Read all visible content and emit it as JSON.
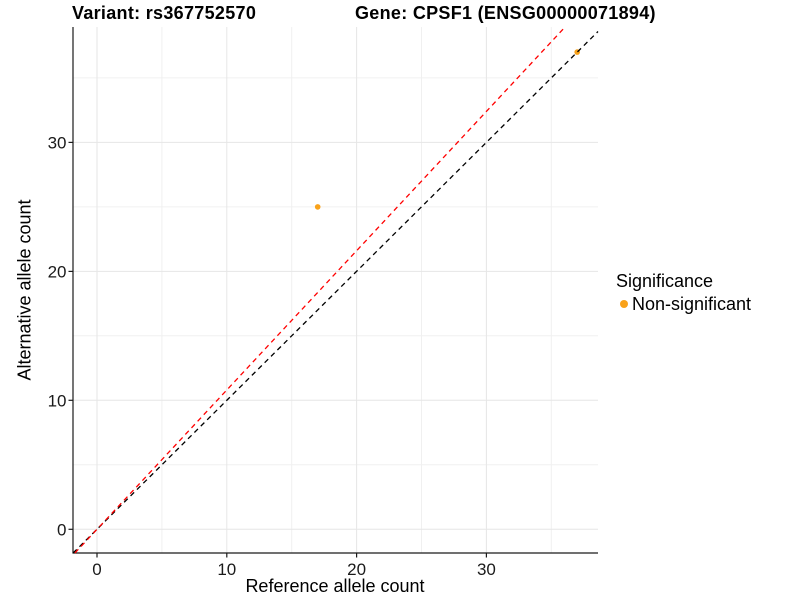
{
  "figure": {
    "title_left": "Variant: rs367752570",
    "title_right": "Gene: CPSF1 (ENSG00000071894)",
    "background": "#FFFFFF"
  },
  "chart_data": {
    "type": "scatter",
    "title": "Variant: rs367752570 / Gene: CPSF1 (ENSG00000071894)",
    "xlabel": "Reference allele count",
    "ylabel": "Alternative allele count",
    "xlim": [
      -1.85,
      38.6
    ],
    "ylim": [
      -1.84,
      38.95
    ],
    "x_major_ticks": [
      0,
      10,
      20,
      30
    ],
    "y_major_ticks": [
      0,
      10,
      20,
      30
    ],
    "x_minor_ticks": [
      5,
      15,
      25,
      35
    ],
    "y_minor_ticks": [
      5,
      15,
      25,
      35
    ],
    "grid": true,
    "colors": {
      "non_significant": "#F9A21A",
      "identity_line": "#000000",
      "fitted_line": "#FF0000",
      "grid_major": "#E6E6E6",
      "grid_minor": "#F0F0F0",
      "axis": "#1A1A1A",
      "tick_label": "#1A1A1A"
    },
    "series": [
      {
        "name": "Non-significant",
        "color": "#F9A21A",
        "points": [
          {
            "x": 17,
            "y": 25
          },
          {
            "x": 37,
            "y": 37
          }
        ]
      }
    ],
    "reference_lines": [
      {
        "name": "identity-line",
        "style": "dashed",
        "color": "#000000",
        "slope": 1.0,
        "intercept": 0
      },
      {
        "name": "fitted-ratio-line",
        "style": "dashed",
        "color": "#FF0000",
        "slope": 1.08,
        "intercept": 0
      }
    ],
    "legend": {
      "title": "Significance",
      "position": "right",
      "entries": [
        {
          "label": "Non-significant",
          "color": "#F9A21A"
        }
      ]
    }
  }
}
